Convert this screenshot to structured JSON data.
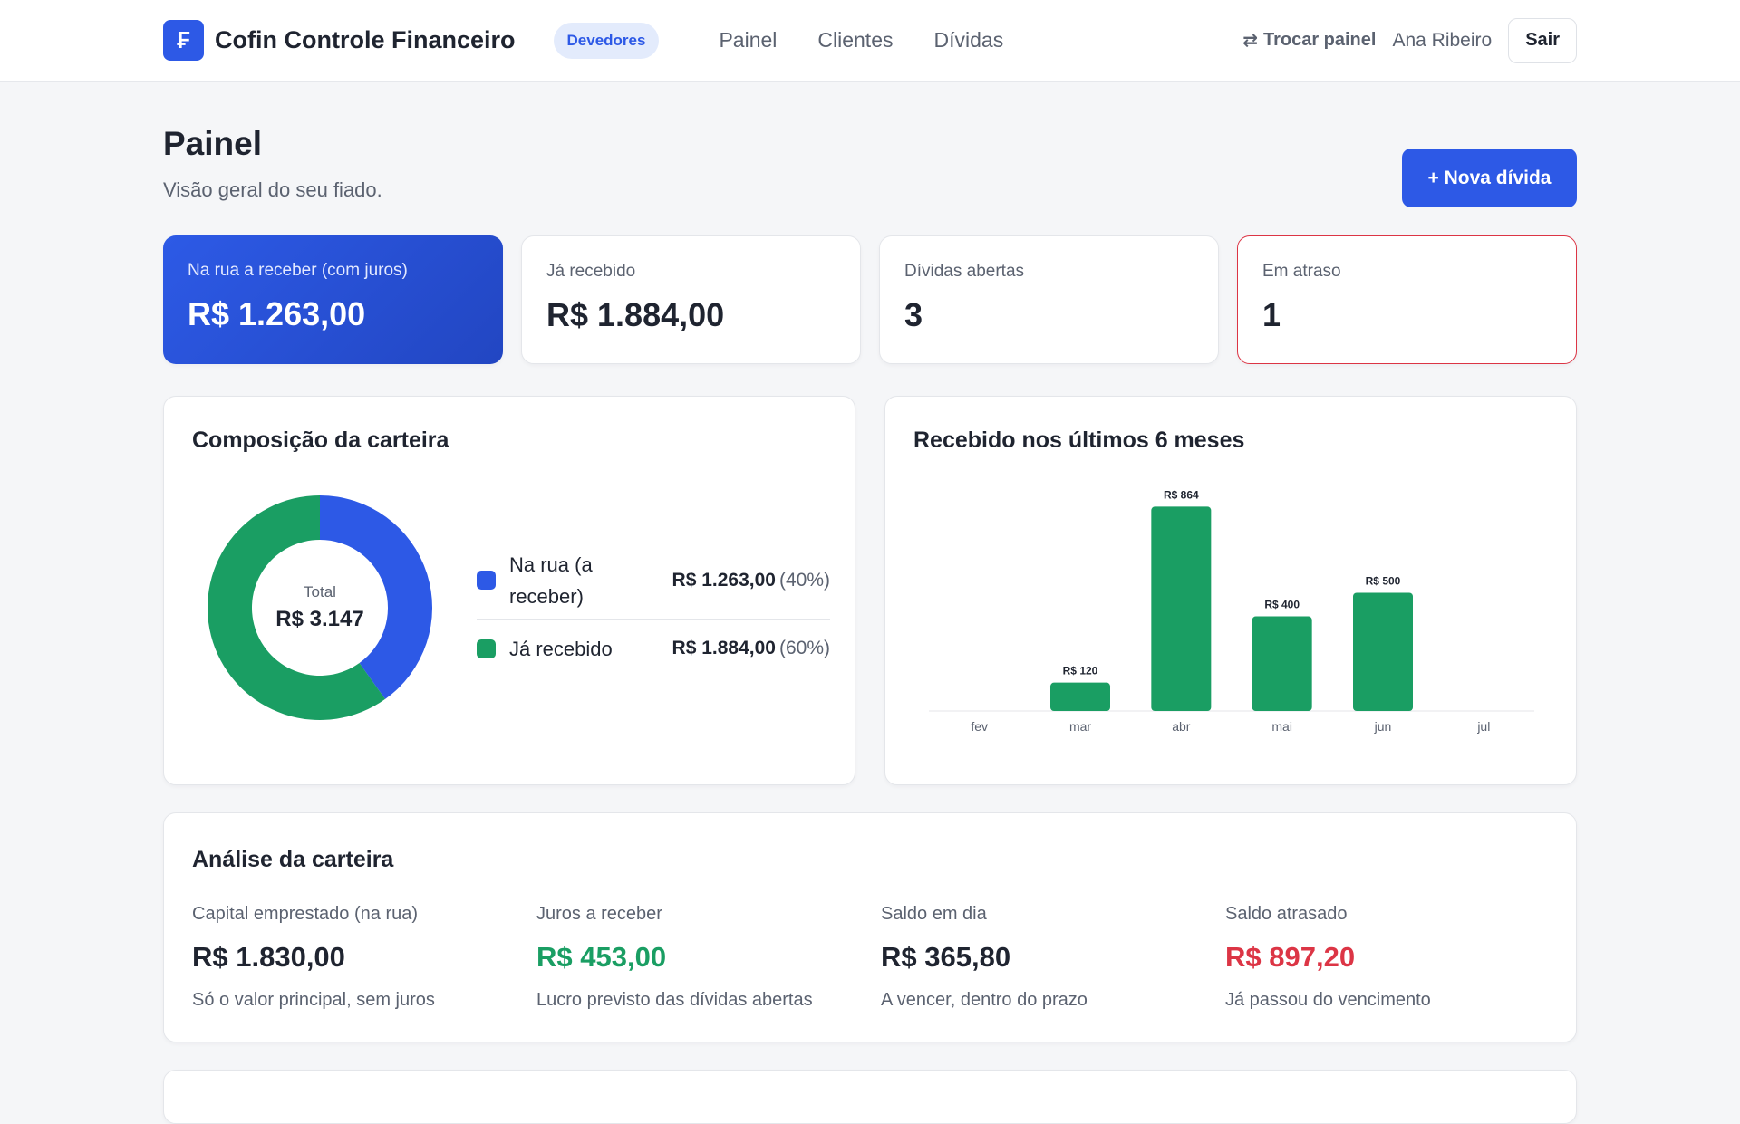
{
  "header": {
    "logo_glyph": "₣",
    "brand": "Cofin Controle Financeiro",
    "role": "Devedores",
    "nav": [
      "Painel",
      "Clientes",
      "Dívidas"
    ],
    "switch_icon": "⇄",
    "switch_label": "Trocar painel",
    "user": "Ana Ribeiro",
    "logout": "Sair"
  },
  "page": {
    "title": "Painel",
    "subtitle": "Visão geral do seu fiado.",
    "new_button": "+ Nova dívida"
  },
  "stats": [
    {
      "label": "Na rua a receber (com juros)",
      "value": "R$ 1.263,00"
    },
    {
      "label": "Já recebido",
      "value": "R$ 1.884,00"
    },
    {
      "label": "Dívidas abertas",
      "value": "3"
    },
    {
      "label": "Em atraso",
      "value": "1"
    }
  ],
  "composition": {
    "title": "Composição da carteira",
    "center_label": "Total",
    "center_value": "R$ 3.147",
    "items": [
      {
        "name": "Na rua (a receber)",
        "value": "R$ 1.263,00",
        "pct": "(40%)"
      },
      {
        "name": "Já recebido",
        "value": "R$ 1.884,00",
        "pct": "(60%)"
      }
    ]
  },
  "received": {
    "title": "Recebido nos últimos 6 meses"
  },
  "analysis": {
    "title": "Análise da carteira",
    "items": [
      {
        "label": "Capital emprestado (na rua)",
        "value": "R$ 1.830,00",
        "note": "Só o valor principal, sem juros"
      },
      {
        "label": "Juros a receber",
        "value": "R$ 453,00",
        "note": "Lucro previsto das dívidas abertas"
      },
      {
        "label": "Saldo em dia",
        "value": "R$ 365,80",
        "note": "A vencer, dentro do prazo"
      },
      {
        "label": "Saldo atrasado",
        "value": "R$ 897,20",
        "note": "Já passou do vencimento"
      }
    ]
  },
  "colors": {
    "primary": "#2d59e6",
    "success": "#1a9e63",
    "danger": "#dc3545"
  },
  "chart_data": [
    {
      "type": "pie",
      "title": "Composição da carteira",
      "categories": [
        "Na rua (a receber)",
        "Já recebido"
      ],
      "values": [
        1263,
        1884
      ],
      "colors": [
        "#2d59e6",
        "#1a9e63"
      ]
    },
    {
      "type": "bar",
      "title": "Recebido nos últimos 6 meses",
      "categories": [
        "fev",
        "mar",
        "abr",
        "mai",
        "jun",
        "jul"
      ],
      "values": [
        0,
        120,
        864,
        400,
        500,
        0
      ],
      "labels": [
        "",
        "R$ 120",
        "R$ 864",
        "R$ 400",
        "R$ 500",
        ""
      ],
      "ylim": [
        0,
        900
      ],
      "color": "#1a9e63",
      "grid": false
    }
  ]
}
